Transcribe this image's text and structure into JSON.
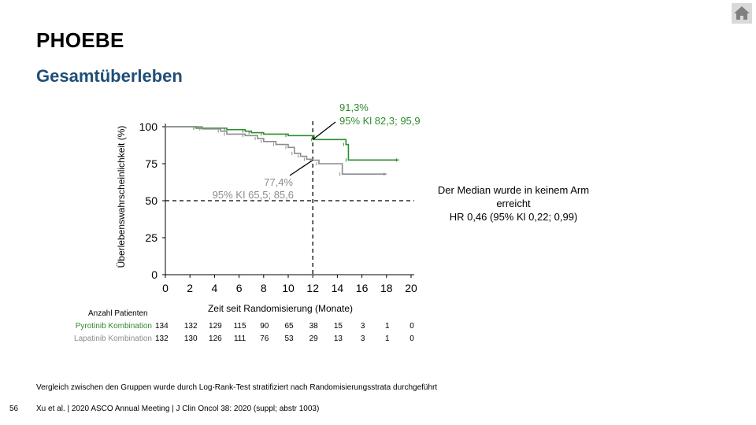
{
  "slide": {
    "title": "PHOEBE",
    "subtitle": "Gesamtüberleben",
    "page_number": "56",
    "footnote": "Vergleich zwischen den Gruppen wurde durch Log-Rank-Test stratifiziert nach Randomisierungsstrata durchgeführt",
    "citation": "Xu et al. | 2020 ASCO Annual Meeting | J Clin Oncol 38: 2020 (suppl; abstr 1003)",
    "home_icon": "home-icon"
  },
  "annotation": {
    "line1": "Der Median wurde in keinem Arm",
    "line2": "erreicht",
    "line3": "HR 0,46 (95% Kl 0,22; 0,99)"
  },
  "chart_data": {
    "type": "line",
    "xlabel": "Zeit seit Randomisierung (Monate)",
    "ylabel": "Überlebenswahrscheinlichkeit (%)",
    "xlim": [
      0,
      20
    ],
    "ylim": [
      0,
      100
    ],
    "xticks": [
      "0",
      "2",
      "4",
      "6",
      "8",
      "10",
      "12",
      "14",
      "16",
      "18",
      "20"
    ],
    "yticks": [
      "0",
      "25",
      "50",
      "75",
      "100"
    ],
    "reference_lines": {
      "x": 12,
      "y": 50
    },
    "series": [
      {
        "name": "Pyrotinib Kombination",
        "color": "#2e8b2e",
        "x": [
          0,
          2.5,
          5,
          6.5,
          7,
          8,
          10,
          12.1,
          14.7,
          14.9,
          19
        ],
        "y": [
          100,
          99,
          98,
          97,
          96,
          95,
          94,
          91.3,
          88,
          77.5,
          77.5
        ],
        "annotation": {
          "value": "91,3%",
          "ci": "95% Kl 82,3; 95,9"
        }
      },
      {
        "name": "Lapatinib Kombination",
        "color": "#8c8c8c",
        "x": [
          0,
          3,
          4.5,
          5,
          6.5,
          7.5,
          8,
          9,
          10,
          10.5,
          11,
          11.5,
          12,
          12.5,
          14.4,
          18
        ],
        "y": [
          100,
          98.5,
          97,
          95,
          94,
          92,
          90,
          88,
          86,
          82,
          80,
          78,
          77.4,
          75,
          68,
          68
        ],
        "annotation": {
          "value": "77,4%",
          "ci": "95% KI 65,5; 85,6"
        }
      }
    ],
    "risk_table": {
      "header": "Anzahl Patienten",
      "times": [
        0,
        2,
        4,
        6,
        8,
        10,
        12,
        14,
        16,
        18,
        20
      ],
      "rows": [
        {
          "name": "Pyrotinib Kombination",
          "color": "#2e8b2e",
          "counts": [
            "134",
            "132",
            "129",
            "115",
            "90",
            "65",
            "38",
            "15",
            "3",
            "1",
            "0"
          ]
        },
        {
          "name": "Lapatinib Kombination",
          "color": "#8c8c8c",
          "counts": [
            "132",
            "130",
            "126",
            "111",
            "76",
            "53",
            "29",
            "13",
            "3",
            "1",
            "0"
          ]
        }
      ]
    }
  }
}
